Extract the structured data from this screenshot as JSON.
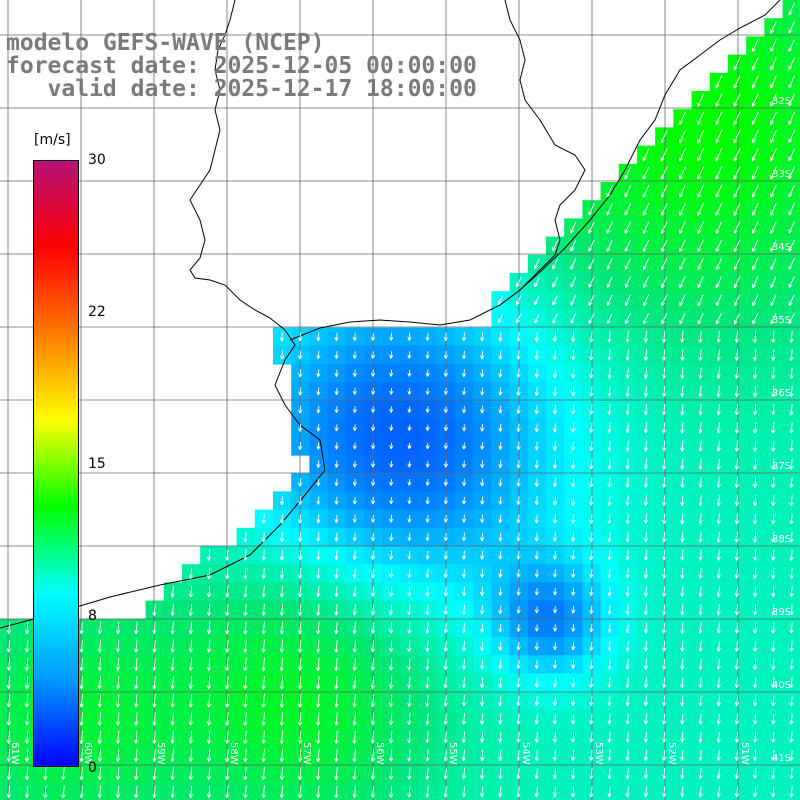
{
  "title": {
    "line1": "modelo GEFS-WAVE (NCEP)",
    "line2": "forecast date: 2025-12-05 00:00:00",
    "line3": "   valid date: 2025-12-17 18:00:00"
  },
  "colorbar": {
    "unit": "[m/s]",
    "ticks": [
      "30",
      "22",
      "15",
      "8",
      "0"
    ],
    "colors": [
      "#b8127a",
      "#ff0000",
      "#ff7a00",
      "#ffff00",
      "#00ff00",
      "#00ffff",
      "#0099ff",
      "#0000ff"
    ]
  },
  "map": {
    "lat_labels": [
      "32S",
      "33S",
      "34S",
      "35S",
      "36S",
      "37S",
      "38S",
      "39S",
      "40S",
      "41S"
    ],
    "lon_labels": [
      "61W",
      "60W",
      "59W",
      "58W",
      "57W",
      "56W",
      "55W",
      "54W",
      "53W",
      "52W",
      "51W"
    ],
    "field": "wind speed with direction arrows",
    "land_color": "#ffffff"
  }
}
